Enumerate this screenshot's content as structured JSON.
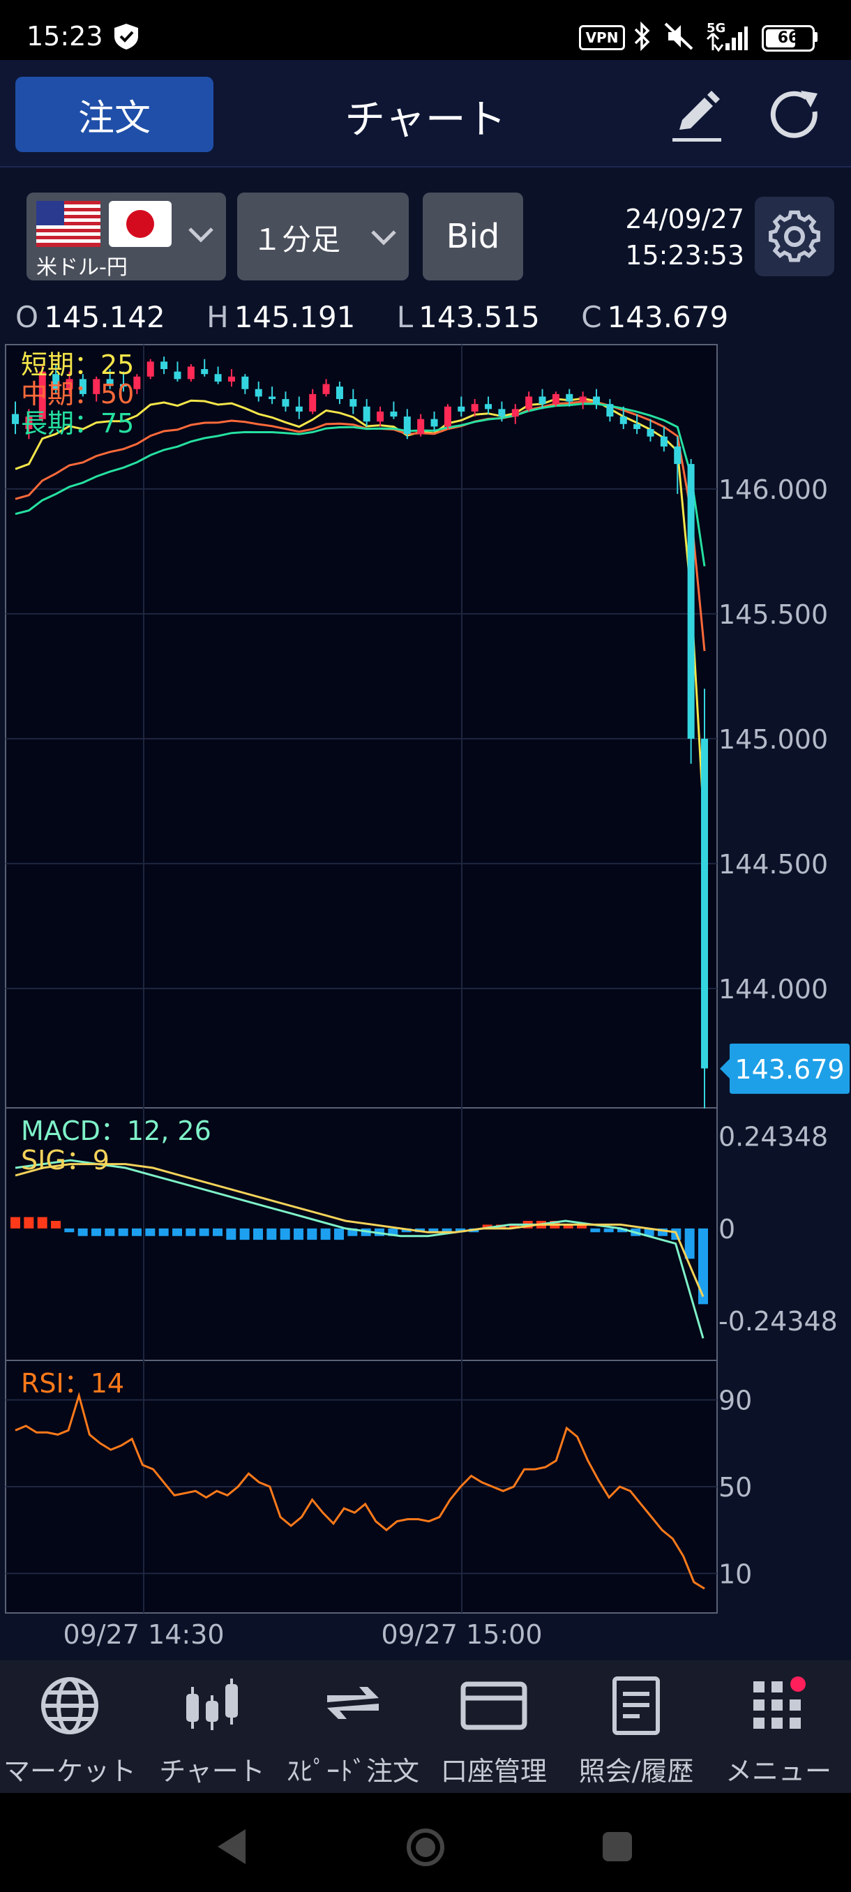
{
  "status_bar": {
    "time": "15:23",
    "icons": [
      "shield-check-icon",
      "vpn-icon",
      "bluetooth-icon",
      "mute-icon",
      "signal-5g-icon",
      "battery-icon"
    ],
    "vpn_label": "VPN",
    "network_label": "5G",
    "battery": "66"
  },
  "header": {
    "order_button": "注文",
    "title": "チャート",
    "edit_icon": "pencil-icon",
    "refresh_icon": "refresh-icon"
  },
  "toolbar": {
    "pair_label": "米ドル-円",
    "timeframe": "１分足",
    "price_type": "Bid",
    "date": "24/09/27",
    "time": "15:23:53",
    "settings_icon": "gear-icon"
  },
  "ohlc": {
    "o_label": "O",
    "o": "145.142",
    "h_label": "H",
    "h": "145.191",
    "l_label": "L",
    "l": "143.515",
    "c_label": "C",
    "c": "143.679"
  },
  "chart_data": [
    {
      "type": "candlestick",
      "panel": "price",
      "legend": [
        {
          "label": "短期：25",
          "color": "#f5e64a"
        },
        {
          "label": "中期：50",
          "color": "#ff6a3a"
        },
        {
          "label": "長期：75",
          "color": "#26e0a0"
        }
      ],
      "y_ticks": [
        "146.000",
        "145.500",
        "145.000",
        "144.500",
        "144.000"
      ],
      "ylim": [
        143.55,
        146.55
      ],
      "last_price": "143.679",
      "colors": {
        "up": "#ff2a55",
        "down": "#35d5e0"
      },
      "candles": [
        [
          146.3,
          146.35,
          146.22,
          146.26
        ],
        [
          146.24,
          146.32,
          146.2,
          146.29
        ],
        [
          146.28,
          146.5,
          146.27,
          146.47
        ],
        [
          146.46,
          146.5,
          146.38,
          146.4
        ],
        [
          146.4,
          146.47,
          146.38,
          146.44
        ],
        [
          146.44,
          146.46,
          146.37,
          146.38
        ],
        [
          146.38,
          146.45,
          146.35,
          146.44
        ],
        [
          146.44,
          146.48,
          146.4,
          146.42
        ],
        [
          146.42,
          146.47,
          146.39,
          146.41
        ],
        [
          146.4,
          146.46,
          146.38,
          146.45
        ],
        [
          146.45,
          146.52,
          146.44,
          146.51
        ],
        [
          146.51,
          146.53,
          146.46,
          146.48
        ],
        [
          146.47,
          146.51,
          146.43,
          146.44
        ],
        [
          146.44,
          146.5,
          146.43,
          146.49
        ],
        [
          146.48,
          146.52,
          146.45,
          146.46
        ],
        [
          146.46,
          146.49,
          146.42,
          146.43
        ],
        [
          146.43,
          146.48,
          146.41,
          146.45
        ],
        [
          146.45,
          146.46,
          146.38,
          146.4
        ],
        [
          146.4,
          146.43,
          146.35,
          146.37
        ],
        [
          146.37,
          146.41,
          146.34,
          146.36
        ],
        [
          146.36,
          146.39,
          146.31,
          146.33
        ],
        [
          146.33,
          146.37,
          146.28,
          146.31
        ],
        [
          146.31,
          146.4,
          146.3,
          146.38
        ],
        [
          146.38,
          146.44,
          146.37,
          146.42
        ],
        [
          146.41,
          146.43,
          146.34,
          146.36
        ],
        [
          146.36,
          146.4,
          146.3,
          146.33
        ],
        [
          146.33,
          146.36,
          146.25,
          146.27
        ],
        [
          146.27,
          146.33,
          146.25,
          146.31
        ],
        [
          146.31,
          146.35,
          146.28,
          146.29
        ],
        [
          146.29,
          146.32,
          146.2,
          146.22
        ],
        [
          146.22,
          146.3,
          146.21,
          146.28
        ],
        [
          146.28,
          146.31,
          146.23,
          146.25
        ],
        [
          146.25,
          146.34,
          146.24,
          146.33
        ],
        [
          146.33,
          146.37,
          146.29,
          146.31
        ],
        [
          146.31,
          146.36,
          146.29,
          146.34
        ],
        [
          146.34,
          146.37,
          146.3,
          146.32
        ],
        [
          146.32,
          146.35,
          146.27,
          146.29
        ],
        [
          146.29,
          146.34,
          146.26,
          146.32
        ],
        [
          146.32,
          146.39,
          146.31,
          146.37
        ],
        [
          146.37,
          146.4,
          146.32,
          146.34
        ],
        [
          146.34,
          146.39,
          146.33,
          146.38
        ],
        [
          146.38,
          146.4,
          146.33,
          146.35
        ],
        [
          146.35,
          146.39,
          146.32,
          146.37
        ],
        [
          146.37,
          146.4,
          146.32,
          146.34
        ],
        [
          146.34,
          146.36,
          146.27,
          146.29
        ],
        [
          146.29,
          146.33,
          146.24,
          146.26
        ],
        [
          146.26,
          146.3,
          146.22,
          146.24
        ],
        [
          146.24,
          146.28,
          146.19,
          146.21
        ],
        [
          146.21,
          146.25,
          146.15,
          146.17
        ],
        [
          146.17,
          146.21,
          145.98,
          146.1
        ],
        [
          146.1,
          146.12,
          144.9,
          145.0
        ],
        [
          145.0,
          145.2,
          143.52,
          143.68
        ]
      ]
    },
    {
      "type": "line",
      "panel": "macd",
      "legend": [
        {
          "label": "MACD：12, 26",
          "color": "#7ff2c8"
        },
        {
          "label": "SIG：9",
          "color": "#f5d35a"
        }
      ],
      "y_ticks": [
        "0.24348",
        "0",
        "-0.24348"
      ],
      "ylim": [
        -0.33,
        0.3
      ],
      "series": [
        {
          "values": [
            0.16,
            0.17,
            0.18,
            0.17,
            0.16,
            0.14,
            0.12,
            0.1,
            0.08,
            0.06,
            0.04,
            0.02,
            0.0,
            -0.01,
            -0.02,
            -0.02,
            -0.01,
            0.0,
            0.01,
            0.01,
            0.02,
            0.01,
            0.0,
            -0.02,
            -0.04,
            -0.29
          ]
        },
        {
          "values": [
            0.14,
            0.16,
            0.17,
            0.17,
            0.17,
            0.16,
            0.14,
            0.12,
            0.1,
            0.08,
            0.06,
            0.04,
            0.02,
            0.01,
            0.0,
            -0.01,
            -0.01,
            0.0,
            0.0,
            0.01,
            0.01,
            0.01,
            0.01,
            0.0,
            -0.01,
            -0.18
          ]
        }
      ],
      "histogram": [
        0.03,
        0.03,
        0.03,
        0.02,
        -0.01,
        -0.02,
        -0.02,
        -0.02,
        -0.02,
        -0.02,
        -0.02,
        -0.02,
        -0.02,
        -0.02,
        -0.02,
        -0.02,
        -0.03,
        -0.03,
        -0.03,
        -0.03,
        -0.03,
        -0.03,
        -0.03,
        -0.03,
        -0.03,
        -0.02,
        -0.02,
        -0.02,
        -0.02,
        -0.01,
        -0.01,
        -0.01,
        -0.01,
        -0.01,
        -0.01,
        0.01,
        0.01,
        0.01,
        0.02,
        0.02,
        0.02,
        0.01,
        0.01,
        -0.01,
        -0.01,
        -0.01,
        -0.02,
        -0.02,
        -0.02,
        -0.03,
        -0.08,
        -0.2
      ]
    },
    {
      "type": "line",
      "panel": "rsi",
      "legend": [
        {
          "label": "RSI：14",
          "color": "#ff7a1a"
        }
      ],
      "y_ticks": [
        "90",
        "50",
        "10"
      ],
      "ylim": [
        -5,
        105
      ],
      "series": [
        {
          "values": [
            76,
            78,
            75,
            75,
            74,
            76,
            92,
            74,
            70,
            67,
            69,
            72,
            60,
            58,
            52,
            46,
            47,
            48,
            45,
            48,
            46,
            50,
            56,
            52,
            50,
            36,
            32,
            36,
            44,
            38,
            33,
            40,
            38,
            42,
            34,
            30,
            34,
            35,
            35,
            34,
            36,
            44,
            50,
            55,
            52,
            50,
            48,
            50,
            58,
            58,
            59,
            62,
            77,
            73,
            62,
            53,
            45,
            50,
            48,
            42,
            36,
            30,
            26,
            18,
            6,
            3
          ]
        }
      ]
    }
  ],
  "x_axis": {
    "labels": [
      "09/27 14:30",
      "09/27 15:00"
    ]
  },
  "nav": [
    {
      "label": "マーケット",
      "icon": "globe-icon"
    },
    {
      "label": "チャート",
      "icon": "candlestick-icon"
    },
    {
      "label": "ｽﾋﾟｰﾄﾞ注文",
      "icon": "swap-arrows-icon"
    },
    {
      "label": "口座管理",
      "icon": "card-icon"
    },
    {
      "label": "照会/履歴",
      "icon": "document-icon"
    },
    {
      "label": "メニュー",
      "icon": "grid-icon"
    }
  ],
  "colors": {
    "accent": "#1f4fa8",
    "price_tag": "#1ea0e8"
  }
}
